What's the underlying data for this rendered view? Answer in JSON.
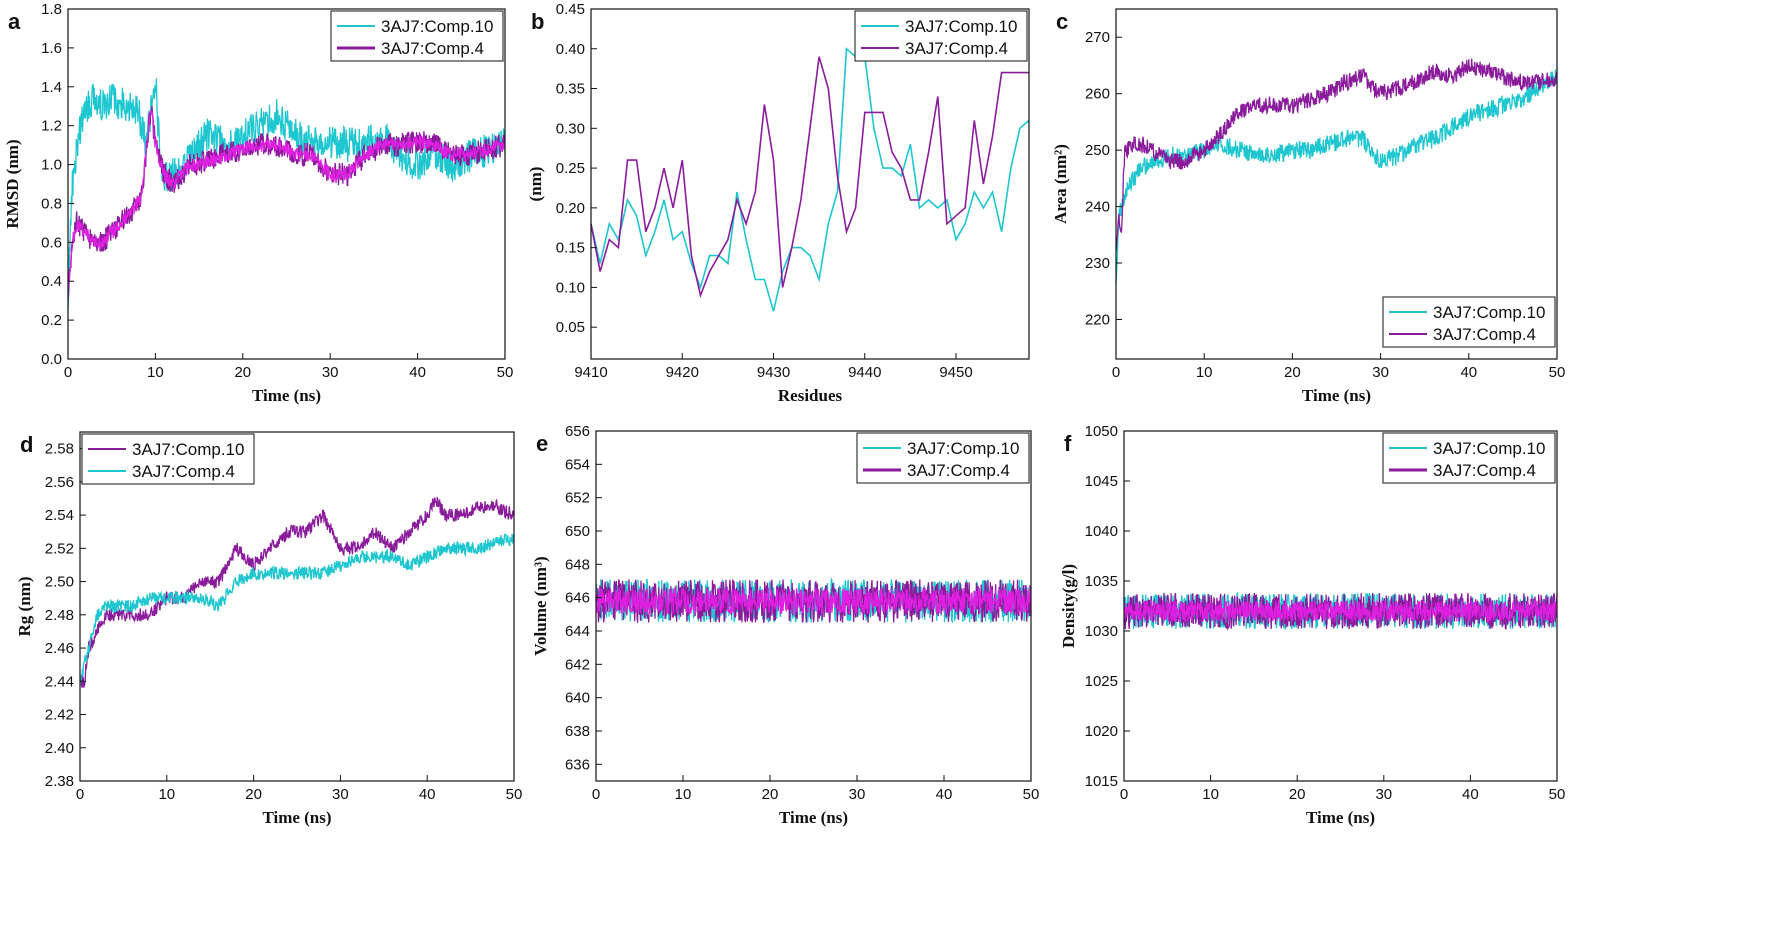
{
  "colors": {
    "cyan": "#1ec6cf",
    "purple": "#8a1c9c",
    "magenta": "#e020e0"
  },
  "chart_data": [
    {
      "type": "line",
      "letter": "a",
      "title": "",
      "xlabel": "Time (ns)",
      "ylabel": "RMSD (nm)",
      "xlim": [
        0,
        50
      ],
      "ylim": [
        0,
        1.8
      ],
      "xticks": [
        "0",
        "10",
        "20",
        "30",
        "40",
        "50"
      ],
      "yticks": [
        "0.0",
        "0.2",
        "0.4",
        "0.6",
        "0.8",
        "1.0",
        "1.2",
        "1.4",
        "1.6",
        "1.8"
      ],
      "legend_position": "top-right",
      "series": [
        {
          "name": "3AJ7:Comp.10",
          "color": "#1ec6cf",
          "noise": 0.09,
          "x": [
            0,
            0.5,
            1,
            2,
            3,
            4,
            5,
            6,
            7,
            8,
            9,
            9.5,
            10,
            10.5,
            11,
            12,
            13,
            14,
            15,
            16,
            18,
            20,
            22,
            24,
            26,
            28,
            30,
            32,
            34,
            36,
            38,
            40,
            42,
            44,
            46,
            48,
            50
          ],
          "y": [
            0.3,
            0.9,
            1.1,
            1.3,
            1.33,
            1.3,
            1.35,
            1.32,
            1.3,
            1.28,
            1.1,
            1.3,
            1.45,
            1.05,
            0.95,
            0.95,
            1.0,
            1.05,
            1.1,
            1.15,
            1.1,
            1.15,
            1.2,
            1.25,
            1.15,
            1.1,
            1.12,
            1.1,
            1.1,
            1.15,
            1.05,
            1.0,
            1.05,
            1.0,
            1.05,
            1.08,
            1.1
          ]
        },
        {
          "name": "3AJ7:Comp.4",
          "color": "#8a1c9c",
          "noise": 0.06,
          "noise_color": "#e020e0",
          "x": [
            0,
            0.5,
            1,
            2,
            3,
            4,
            5,
            6,
            7,
            8,
            8.5,
            9,
            9.5,
            10,
            11,
            12,
            13,
            14,
            15,
            16,
            18,
            20,
            22,
            24,
            26,
            28,
            29,
            30,
            32,
            33,
            34,
            36,
            38,
            40,
            42,
            44,
            46,
            48,
            50
          ],
          "y": [
            0.3,
            0.6,
            0.7,
            0.65,
            0.6,
            0.6,
            0.65,
            0.7,
            0.75,
            0.8,
            0.85,
            1.1,
            1.3,
            1.1,
            0.95,
            0.9,
            0.95,
            1.0,
            1.0,
            1.02,
            1.05,
            1.08,
            1.1,
            1.1,
            1.05,
            1.05,
            1.0,
            0.95,
            0.95,
            1.0,
            1.05,
            1.1,
            1.1,
            1.12,
            1.1,
            1.05,
            1.05,
            1.08,
            1.1
          ]
        }
      ]
    },
    {
      "type": "line",
      "letter": "b",
      "title": "",
      "xlabel": "Residues",
      "ylabel": "(nm)",
      "xlim": [
        9410,
        9458
      ],
      "ylim": [
        0.01,
        0.45
      ],
      "xticks": [
        "9410",
        "9420",
        "9430",
        "9440",
        "9450"
      ],
      "yticks": [
        "0.05",
        "0.10",
        "0.15",
        "0.20",
        "0.25",
        "0.30",
        "0.35",
        "0.40",
        "0.45"
      ],
      "legend_position": "top-right",
      "series": [
        {
          "name": "3AJ7:Comp.10",
          "color": "#1ec6cf",
          "noise": 0,
          "x": [
            9410,
            9411,
            9412,
            9413,
            9414,
            9415,
            9416,
            9417,
            9418,
            9419,
            9420,
            9421,
            9422,
            9423,
            9424,
            9425,
            9426,
            9427,
            9428,
            9429,
            9430,
            9431,
            9432,
            9433,
            9434,
            9435,
            9436,
            9437,
            9438,
            9439,
            9440,
            9441,
            9442,
            9443,
            9444,
            9445,
            9446,
            9447,
            9448,
            9449,
            9450,
            9451,
            9452,
            9453,
            9454,
            9455,
            9456,
            9457,
            9458
          ],
          "y": [
            0.18,
            0.13,
            0.18,
            0.16,
            0.21,
            0.19,
            0.14,
            0.17,
            0.21,
            0.16,
            0.17,
            0.13,
            0.1,
            0.14,
            0.14,
            0.13,
            0.22,
            0.16,
            0.11,
            0.11,
            0.07,
            0.12,
            0.15,
            0.15,
            0.14,
            0.11,
            0.18,
            0.22,
            0.4,
            0.39,
            0.39,
            0.3,
            0.25,
            0.25,
            0.24,
            0.28,
            0.2,
            0.21,
            0.2,
            0.21,
            0.16,
            0.18,
            0.22,
            0.2,
            0.22,
            0.17,
            0.25,
            0.3,
            0.31
          ]
        },
        {
          "name": "3AJ7:Comp.4",
          "color": "#8a1c9c",
          "noise": 0,
          "x": [
            9410,
            9411,
            9412,
            9413,
            9414,
            9415,
            9416,
            9417,
            9418,
            9419,
            9420,
            9421,
            9422,
            9423,
            9424,
            9425,
            9426,
            9427,
            9428,
            9429,
            9430,
            9431,
            9432,
            9433,
            9434,
            9435,
            9436,
            9437,
            9438,
            9439,
            9440,
            9441,
            9442,
            9443,
            9444,
            9445,
            9446,
            9447,
            9448,
            9449,
            9450,
            9451,
            9452,
            9453,
            9454,
            9455,
            9456,
            9457,
            9458
          ],
          "y": [
            0.18,
            0.12,
            0.16,
            0.15,
            0.26,
            0.26,
            0.17,
            0.2,
            0.25,
            0.2,
            0.26,
            0.14,
            0.09,
            0.12,
            0.14,
            0.16,
            0.21,
            0.18,
            0.22,
            0.33,
            0.26,
            0.1,
            0.15,
            0.21,
            0.3,
            0.39,
            0.35,
            0.24,
            0.17,
            0.2,
            0.32,
            0.32,
            0.32,
            0.27,
            0.25,
            0.21,
            0.21,
            0.27,
            0.34,
            0.18,
            0.19,
            0.2,
            0.31,
            0.23,
            0.29,
            0.37,
            0.37,
            0.37,
            0.37
          ]
        }
      ]
    },
    {
      "type": "line",
      "letter": "c",
      "title": "",
      "xlabel": "Time (ns)",
      "ylabel": "Area (nm²)",
      "xlim": [
        0,
        50
      ],
      "ylim": [
        213,
        275
      ],
      "xticks": [
        "0",
        "10",
        "20",
        "30",
        "40",
        "50"
      ],
      "yticks": [
        "220",
        "230",
        "240",
        "250",
        "260",
        "270"
      ],
      "legend_position": "bottom-right",
      "series": [
        {
          "name": "3AJ7:Comp.10",
          "color": "#1ec6cf",
          "noise": 1.6,
          "x": [
            0,
            0.3,
            0.6,
            1,
            2,
            3,
            4,
            5,
            6,
            8,
            10,
            12,
            14,
            16,
            18,
            20,
            22,
            24,
            26,
            28,
            30,
            32,
            34,
            36,
            38,
            40,
            42,
            44,
            46,
            48,
            50
          ],
          "y": [
            225,
            238,
            240,
            242,
            245,
            247,
            248,
            248,
            249,
            249,
            250,
            251,
            250,
            249,
            249,
            250,
            250,
            251,
            252,
            252,
            248,
            249,
            251,
            252,
            254,
            256,
            257,
            258,
            259,
            261,
            263
          ]
        },
        {
          "name": "3AJ7:Comp.4",
          "color": "#8a1c9c",
          "noise": 1.5,
          "x": [
            0,
            0.3,
            0.6,
            1,
            2,
            3,
            4,
            5,
            6,
            8,
            10,
            12,
            14,
            16,
            18,
            20,
            22,
            24,
            26,
            28,
            30,
            32,
            34,
            36,
            38,
            40,
            42,
            44,
            46,
            48,
            50
          ],
          "y": [
            232,
            238,
            236,
            250,
            251,
            251,
            250,
            249,
            248,
            248,
            250,
            253,
            257,
            258,
            258,
            258,
            259,
            260,
            262,
            263,
            260,
            261,
            262,
            264,
            263,
            265,
            264,
            263,
            262,
            262,
            263
          ]
        }
      ]
    },
    {
      "type": "line",
      "letter": "d",
      "title": "",
      "xlabel": "Time (ns)",
      "ylabel": "Rg (nm)",
      "xlim": [
        0,
        50
      ],
      "ylim": [
        2.38,
        2.59
      ],
      "xticks": [
        "0",
        "10",
        "20",
        "30",
        "40",
        "50"
      ],
      "yticks": [
        "2.38",
        "2.40",
        "2.42",
        "2.44",
        "2.46",
        "2.48",
        "2.50",
        "2.52",
        "2.54",
        "2.56",
        "2.58"
      ],
      "legend_position": "top-left",
      "series": [
        {
          "name": "3AJ7:Comp.10",
          "color": "#8a1c9c",
          "noise": 0.004,
          "x": [
            0,
            0.5,
            1,
            2,
            3,
            4,
            6,
            8,
            10,
            12,
            14,
            16,
            17,
            18,
            20,
            22,
            24,
            26,
            28,
            29,
            30,
            32,
            34,
            36,
            38,
            40,
            41,
            42,
            44,
            46,
            48,
            50
          ],
          "y": [
            2.44,
            2.44,
            2.46,
            2.47,
            2.48,
            2.48,
            2.48,
            2.48,
            2.49,
            2.49,
            2.5,
            2.5,
            2.51,
            2.52,
            2.51,
            2.52,
            2.53,
            2.53,
            2.54,
            2.53,
            2.52,
            2.52,
            2.53,
            2.52,
            2.53,
            2.54,
            2.55,
            2.54,
            2.54,
            2.545,
            2.545,
            2.54
          ]
        },
        {
          "name": "3AJ7:Comp.4",
          "color": "#1ec6cf",
          "noise": 0.004,
          "x": [
            0,
            0.5,
            1,
            2,
            3,
            4,
            6,
            8,
            10,
            12,
            14,
            16,
            18,
            20,
            22,
            24,
            26,
            28,
            30,
            32,
            34,
            36,
            38,
            40,
            42,
            44,
            46,
            48,
            50
          ],
          "y": [
            2.44,
            2.45,
            2.46,
            2.48,
            2.485,
            2.485,
            2.485,
            2.49,
            2.49,
            2.49,
            2.49,
            2.485,
            2.5,
            2.505,
            2.505,
            2.505,
            2.505,
            2.505,
            2.51,
            2.515,
            2.515,
            2.515,
            2.51,
            2.515,
            2.52,
            2.52,
            2.52,
            2.525,
            2.525
          ]
        }
      ]
    },
    {
      "type": "line",
      "letter": "e",
      "title": "",
      "xlabel": "Time (ns)",
      "ylabel": "Volume (nm³)",
      "xlim": [
        0,
        50
      ],
      "ylim": [
        635,
        656
      ],
      "xticks": [
        "0",
        "10",
        "20",
        "30",
        "40",
        "50"
      ],
      "yticks": [
        "636",
        "638",
        "640",
        "642",
        "644",
        "646",
        "648",
        "650",
        "652",
        "654",
        "656"
      ],
      "legend_position": "top-right",
      "series": [
        {
          "name": "3AJ7:Comp.10",
          "color": "#1ec6cf",
          "noise": 1.3,
          "x": [
            0,
            50
          ],
          "y": [
            645.8,
            645.8
          ]
        },
        {
          "name": "3AJ7:Comp.4",
          "color": "#8a1c9c",
          "noise": 1.3,
          "noise_color": "#e020e0",
          "x": [
            0,
            50
          ],
          "y": [
            645.8,
            645.8
          ]
        }
      ]
    },
    {
      "type": "line",
      "letter": "f",
      "title": "",
      "xlabel": "Time (ns)",
      "ylabel": "Density(g/l)",
      "xlim": [
        0,
        50
      ],
      "ylim": [
        1015,
        1050
      ],
      "xticks": [
        "0",
        "10",
        "20",
        "30",
        "40",
        "50"
      ],
      "yticks": [
        "1015",
        "1020",
        "1025",
        "1030",
        "1035",
        "1040",
        "1045",
        "1050"
      ],
      "legend_position": "top-right",
      "series": [
        {
          "name": "3AJ7:Comp.10",
          "color": "#1ec6cf",
          "noise": 1.8,
          "x": [
            0,
            50
          ],
          "y": [
            1032,
            1032
          ]
        },
        {
          "name": "3AJ7:Comp.4",
          "color": "#8a1c9c",
          "noise": 1.8,
          "noise_color": "#e020e0",
          "x": [
            0,
            50
          ],
          "y": [
            1032,
            1032
          ]
        }
      ]
    }
  ]
}
